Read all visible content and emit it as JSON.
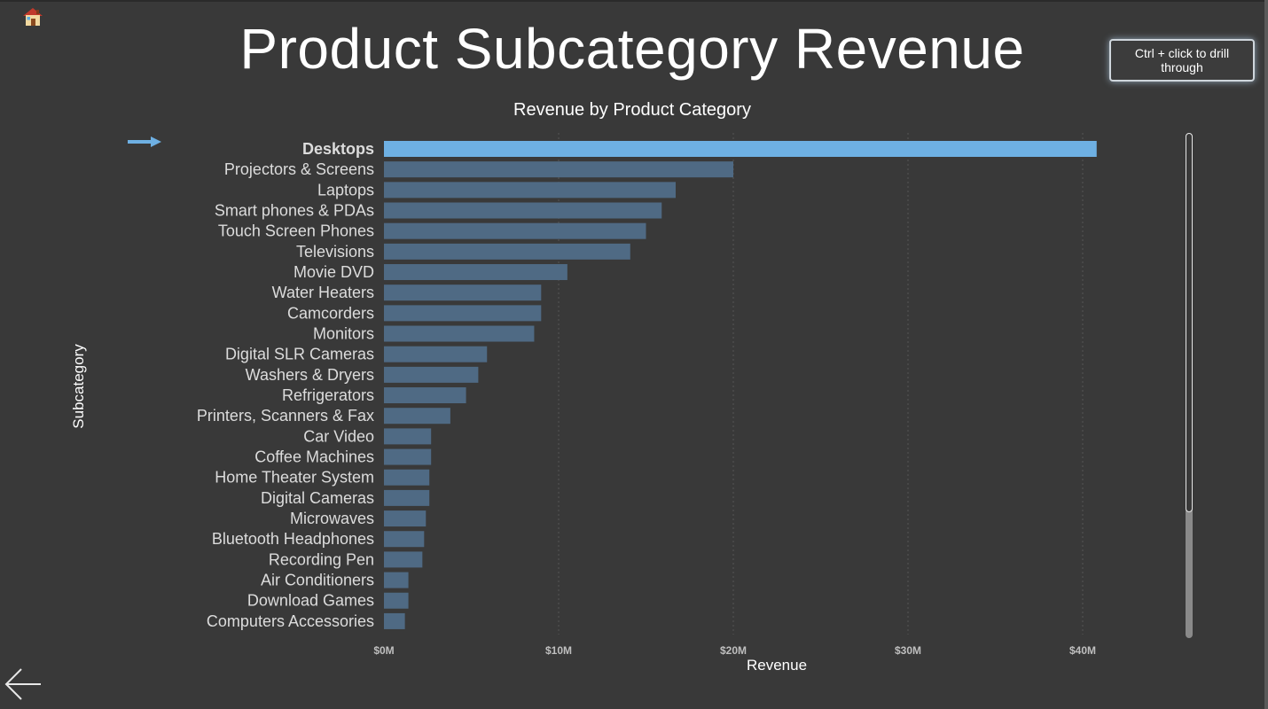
{
  "page": {
    "title": "Product Subcategory Revenue",
    "drill_button_label": "Ctrl + click to drill through"
  },
  "icons": {
    "home": "home-icon",
    "back": "back-arrow-icon",
    "drill_indicator": "right-arrow-icon"
  },
  "colors": {
    "background": "#393939",
    "bar": "#4f6a84",
    "bar_highlight": "#6eb0e3",
    "label": "#dcdcdc",
    "tick_label": "#bfbfbf",
    "gridline": "#555555"
  },
  "chart_data": {
    "type": "bar",
    "orientation": "horizontal",
    "title": "Revenue by Product Category",
    "xlabel": "Revenue",
    "ylabel": "Subcategory",
    "xlim": [
      0,
      45
    ],
    "x_unit": "$M",
    "x_ticks": [
      "$0M",
      "$10M",
      "$20M",
      "$30M",
      "$40M"
    ],
    "x_tick_values": [
      0,
      10,
      20,
      30,
      40
    ],
    "grid": true,
    "highlighted_category": "Desktops",
    "categories": [
      "Desktops",
      "Projectors & Screens",
      "Laptops",
      "Smart phones & PDAs",
      "Touch Screen Phones",
      "Televisions",
      "Movie DVD",
      "Water Heaters",
      "Camcorders",
      "Monitors",
      "Digital SLR Cameras",
      "Washers & Dryers",
      "Refrigerators",
      "Printers, Scanners & Fax",
      "Car Video",
      "Coffee Machines",
      "Home Theater System",
      "Digital Cameras",
      "Microwaves",
      "Bluetooth Headphones",
      "Recording Pen",
      "Air Conditioners",
      "Download Games",
      "Computers Accessories"
    ],
    "values": [
      40.8,
      20.0,
      16.7,
      15.9,
      15.0,
      14.1,
      10.5,
      9.0,
      9.0,
      8.6,
      5.9,
      5.4,
      4.7,
      3.8,
      2.7,
      2.7,
      2.6,
      2.6,
      2.4,
      2.3,
      2.2,
      1.4,
      1.4,
      1.2
    ]
  }
}
